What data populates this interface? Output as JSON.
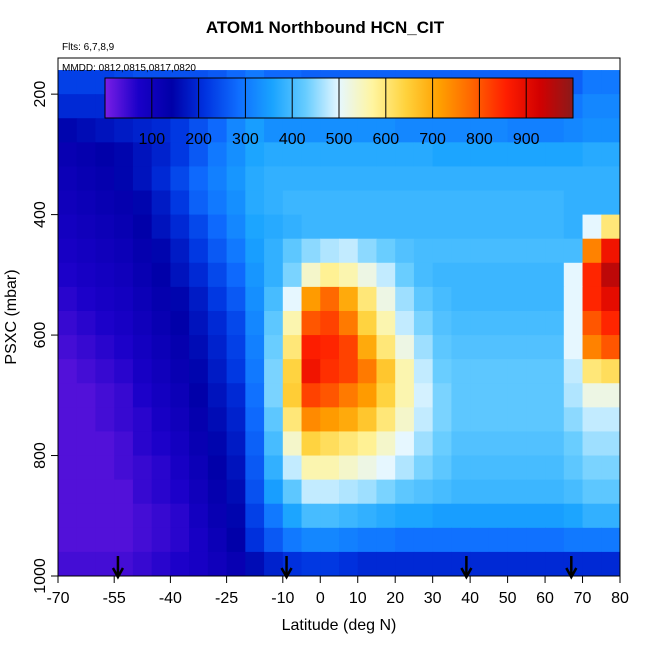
{
  "chart_data": {
    "type": "heatmap",
    "title": "ATOM1 Northbound HCN_CIT",
    "flights_note": "Flts: 6,7,8,9",
    "dates_note": "MMDD: 0812,0815,0817,0820",
    "xlabel": "Latitude (deg N)",
    "ylabel": "PSXC (mbar)",
    "xlim": [
      -70,
      80
    ],
    "ylim": [
      1000,
      140
    ],
    "x_ticks": [
      -70,
      -55,
      -40,
      -25,
      -10,
      0,
      10,
      20,
      30,
      40,
      50,
      60,
      70,
      80
    ],
    "y_ticks": [
      200,
      400,
      600,
      800,
      1000
    ],
    "colorbar": {
      "range": [
        0,
        1000
      ],
      "ticks": [
        100,
        200,
        300,
        400,
        500,
        600,
        700,
        800,
        900
      ],
      "colors": [
        "#7a1ee6",
        "#1a00c8",
        "#0000a8",
        "#0033e0",
        "#0f6eff",
        "#19a3ff",
        "#66ccff",
        "#e6f7ff",
        "#fff5a0",
        "#ffd23c",
        "#ffa000",
        "#ff6400",
        "#ff1e00",
        "#d20000",
        "#8b1a1a"
      ]
    },
    "latitude_bins": [
      -70,
      -65,
      -60,
      -55,
      -50,
      -45,
      -40,
      -35,
      -30,
      -25,
      -20,
      -15,
      -10,
      -5,
      0,
      5,
      10,
      15,
      20,
      25,
      30,
      35,
      40,
      45,
      50,
      55,
      60,
      65,
      70,
      75,
      80
    ],
    "pressure_bins": [
      160,
      200,
      240,
      280,
      320,
      360,
      400,
      440,
      480,
      520,
      560,
      600,
      640,
      680,
      720,
      760,
      800,
      840,
      880,
      920,
      960,
      1000
    ],
    "hcn_pptv": [
      [
        230,
        230,
        230,
        240,
        250,
        250,
        250,
        250,
        260,
        280,
        300,
        280,
        280,
        270,
        270,
        270,
        270,
        270,
        270,
        270,
        270,
        270,
        270,
        270,
        270,
        270,
        270,
        270,
        300,
        300
      ],
      [
        200,
        200,
        200,
        210,
        220,
        230,
        240,
        260,
        300,
        400,
        330,
        300,
        300,
        290,
        290,
        290,
        290,
        290,
        290,
        290,
        290,
        290,
        290,
        290,
        290,
        290,
        300,
        300,
        320,
        320
      ],
      [
        150,
        160,
        170,
        180,
        190,
        200,
        220,
        250,
        280,
        320,
        350,
        330,
        330,
        330,
        330,
        330,
        330,
        330,
        320,
        320,
        320,
        320,
        320,
        320,
        310,
        310,
        310,
        320,
        330,
        330
      ],
      [
        120,
        130,
        140,
        150,
        170,
        190,
        220,
        260,
        300,
        330,
        360,
        370,
        370,
        370,
        370,
        370,
        370,
        370,
        370,
        370,
        360,
        360,
        360,
        360,
        360,
        360,
        360,
        360,
        370,
        370
      ],
      [
        110,
        120,
        130,
        150,
        170,
        200,
        240,
        280,
        310,
        340,
        370,
        380,
        380,
        380,
        380,
        380,
        380,
        380,
        380,
        380,
        380,
        380,
        380,
        380,
        380,
        380,
        380,
        380,
        380,
        380
      ],
      [
        100,
        110,
        120,
        130,
        150,
        180,
        220,
        270,
        300,
        330,
        370,
        380,
        390,
        390,
        390,
        390,
        390,
        390,
        390,
        390,
        390,
        390,
        390,
        390,
        390,
        390,
        390,
        380,
        380,
        380
      ],
      [
        90,
        100,
        110,
        120,
        140,
        170,
        200,
        240,
        280,
        320,
        360,
        370,
        380,
        390,
        390,
        390,
        390,
        390,
        390,
        390,
        390,
        390,
        390,
        390,
        390,
        390,
        390,
        380,
        500,
        600
      ],
      [
        80,
        90,
        100,
        110,
        130,
        150,
        180,
        220,
        260,
        300,
        350,
        380,
        420,
        450,
        470,
        480,
        450,
        430,
        410,
        400,
        400,
        400,
        400,
        400,
        400,
        400,
        400,
        400,
        750,
        880
      ],
      [
        70,
        80,
        90,
        100,
        120,
        140,
        170,
        200,
        240,
        280,
        340,
        380,
        440,
        540,
        580,
        560,
        520,
        480,
        430,
        400,
        390,
        390,
        390,
        390,
        390,
        390,
        390,
        500,
        850,
        950
      ],
      [
        60,
        70,
        80,
        90,
        110,
        130,
        150,
        180,
        220,
        260,
        330,
        400,
        500,
        720,
        780,
        700,
        600,
        520,
        460,
        420,
        400,
        390,
        390,
        390,
        390,
        390,
        390,
        500,
        850,
        900
      ],
      [
        50,
        60,
        70,
        80,
        100,
        120,
        140,
        170,
        200,
        240,
        320,
        420,
        560,
        800,
        820,
        760,
        640,
        560,
        480,
        440,
        410,
        400,
        400,
        400,
        400,
        400,
        400,
        500,
        800,
        850
      ],
      [
        40,
        50,
        60,
        70,
        90,
        110,
        130,
        160,
        190,
        230,
        310,
        430,
        600,
        860,
        850,
        820,
        700,
        600,
        520,
        460,
        420,
        410,
        410,
        410,
        410,
        410,
        410,
        500,
        750,
        800
      ],
      [
        30,
        40,
        50,
        60,
        80,
        100,
        120,
        150,
        180,
        220,
        300,
        440,
        640,
        880,
        840,
        820,
        760,
        660,
        560,
        480,
        430,
        420,
        420,
        420,
        420,
        420,
        420,
        480,
        600,
        620
      ],
      [
        30,
        30,
        40,
        50,
        70,
        90,
        110,
        140,
        170,
        200,
        290,
        440,
        650,
        820,
        800,
        760,
        720,
        640,
        560,
        490,
        440,
        420,
        420,
        420,
        420,
        420,
        420,
        470,
        520,
        520
      ],
      [
        30,
        30,
        40,
        50,
        60,
        80,
        100,
        130,
        160,
        190,
        280,
        420,
        600,
        740,
        720,
        700,
        660,
        600,
        540,
        480,
        440,
        420,
        420,
        420,
        420,
        420,
        420,
        450,
        480,
        480
      ],
      [
        30,
        30,
        30,
        40,
        60,
        70,
        90,
        120,
        150,
        180,
        270,
        400,
        540,
        640,
        620,
        600,
        580,
        540,
        500,
        460,
        430,
        410,
        410,
        410,
        410,
        410,
        410,
        430,
        460,
        460
      ],
      [
        30,
        30,
        30,
        40,
        50,
        60,
        80,
        110,
        140,
        170,
        260,
        380,
        480,
        560,
        560,
        540,
        520,
        500,
        470,
        440,
        420,
        400,
        400,
        400,
        400,
        400,
        400,
        420,
        440,
        440
      ],
      [
        30,
        30,
        30,
        30,
        50,
        60,
        70,
        100,
        130,
        160,
        250,
        350,
        420,
        480,
        480,
        470,
        460,
        440,
        420,
        410,
        400,
        390,
        390,
        390,
        390,
        390,
        390,
        400,
        420,
        420
      ],
      [
        30,
        30,
        30,
        30,
        40,
        50,
        60,
        90,
        120,
        150,
        230,
        300,
        360,
        400,
        400,
        390,
        380,
        370,
        360,
        360,
        350,
        350,
        350,
        350,
        350,
        350,
        350,
        360,
        380,
        380
      ],
      [
        30,
        30,
        30,
        30,
        40,
        50,
        60,
        80,
        110,
        140,
        210,
        260,
        300,
        320,
        320,
        310,
        300,
        300,
        290,
        290,
        290,
        290,
        290,
        290,
        290,
        290,
        290,
        300,
        300,
        300
      ],
      [
        40,
        40,
        40,
        40,
        50,
        60,
        70,
        80,
        100,
        120,
        160,
        190,
        210,
        220,
        220,
        210,
        200,
        200,
        200,
        200,
        200,
        200,
        200,
        200,
        200,
        200,
        200,
        200,
        200,
        200
      ]
    ]
  }
}
